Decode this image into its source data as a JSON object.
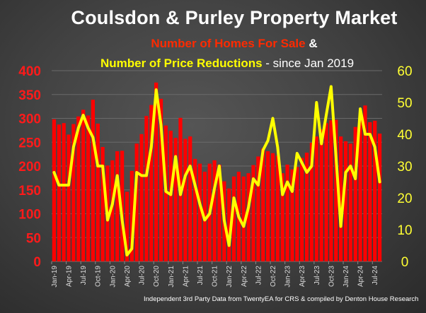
{
  "header": {
    "title": "Coulsdon & Purley Property Market",
    "subtitle_part1": "Number of Homes For Sale",
    "subtitle_amp": " &",
    "subtitle_part2": "Number of Price Reductions",
    "subtitle_part3": " - since Jan 2019"
  },
  "footer": "Independent 3rd Party Data from TwentyEA for CRS & compiled by Denton House Research",
  "colors": {
    "bars": "#ff0000",
    "line": "#ffff00",
    "left_axis": "#ff1a1a",
    "right_axis": "#ffff33",
    "grid": "#6a6a6a"
  },
  "chart_data": {
    "type": "bar+line",
    "title": "Coulsdon & Purley Property Market",
    "subtitle": "Number of Homes For Sale & Number of Price Reductions - since Jan 2019",
    "grid": true,
    "x": [
      "Jan-19",
      "Feb-19",
      "Mar-19",
      "Apr-19",
      "May-19",
      "Jun-19",
      "Jul-19",
      "Aug-19",
      "Sep-19",
      "Oct-19",
      "Nov-19",
      "Dec-19",
      "Jan-20",
      "Feb-20",
      "Mar-20",
      "Apr-20",
      "May-20",
      "Jun-20",
      "Jul-20",
      "Aug-20",
      "Sep-20",
      "Oct-20",
      "Nov-20",
      "Dec-20",
      "Jan-21",
      "Feb-21",
      "Mar-21",
      "Apr-21",
      "May-21",
      "Jun-21",
      "Jul-21",
      "Aug-21",
      "Sep-21",
      "Oct-21",
      "Nov-21",
      "Dec-21",
      "Jan-22",
      "Feb-22",
      "Mar-22",
      "Apr-22",
      "May-22",
      "Jun-22",
      "Jul-22",
      "Aug-22",
      "Sep-22",
      "Oct-22",
      "Nov-22",
      "Dec-22",
      "Jan-23",
      "Feb-23",
      "Mar-23",
      "Apr-23",
      "May-23",
      "Jun-23",
      "Jul-23",
      "Aug-23",
      "Sep-23",
      "Oct-23",
      "Nov-23",
      "Dec-23",
      "Jan-24",
      "Feb-24",
      "Mar-24",
      "Apr-24",
      "May-24",
      "Jun-24",
      "Jul-24",
      "Aug-24"
    ],
    "x_tick_labels": [
      "Jan-19",
      "Apr-19",
      "Jul-19",
      "Oct-19",
      "Jan-20",
      "Apr-20",
      "Jul-20",
      "Oct-20",
      "Jan-21",
      "Apr-21",
      "Jul-21",
      "Oct-21",
      "Jan-22",
      "Apr-22",
      "Jul-22",
      "Oct-22",
      "Jan-23",
      "Apr-23",
      "Jul-23",
      "Oct-23",
      "Jan-24",
      "Apr-24",
      "Jul-24"
    ],
    "series": [
      {
        "name": "Number of Homes For Sale",
        "type": "bar",
        "axis": "left",
        "values": [
          298,
          287,
          290,
          266,
          288,
          304,
          318,
          306,
          339,
          289,
          240,
          201,
          212,
          231,
          232,
          146,
          190,
          247,
          267,
          305,
          328,
          375,
          341,
          285,
          274,
          259,
          301,
          257,
          262,
          215,
          205,
          188,
          205,
          212,
          203,
          168,
          153,
          178,
          188,
          178,
          185,
          202,
          220,
          237,
          231,
          227,
          222,
          185,
          203,
          193,
          198,
          217,
          228,
          249,
          262,
          277,
          290,
          296,
          297,
          262,
          252,
          247,
          282,
          301,
          327,
          292,
          295,
          268
        ]
      },
      {
        "name": "Number of Price Reductions",
        "type": "line",
        "axis": "right",
        "values": [
          28,
          24,
          24,
          24,
          36,
          42,
          46,
          42,
          39,
          30,
          30,
          13,
          18,
          27,
          13,
          2,
          4,
          28,
          27,
          27,
          36,
          54,
          43,
          22,
          21,
          33,
          21,
          27,
          30,
          24,
          18,
          13,
          15,
          23,
          30,
          13,
          5,
          20,
          14,
          11,
          17,
          26,
          24,
          35,
          38,
          45,
          36,
          21,
          25,
          22,
          34,
          31,
          28,
          30,
          50,
          37,
          46,
          55,
          33,
          11,
          28,
          30,
          26,
          48,
          40,
          40,
          36,
          25
        ]
      }
    ],
    "y_left": {
      "label": "Homes For Sale",
      "ylim": [
        0,
        400
      ],
      "ticks": [
        0,
        50,
        100,
        150,
        200,
        250,
        300,
        350,
        400
      ]
    },
    "y_right": {
      "label": "Price Reductions",
      "ylim": [
        0,
        60
      ],
      "ticks": [
        0,
        10,
        20,
        30,
        40,
        50,
        60
      ]
    }
  }
}
